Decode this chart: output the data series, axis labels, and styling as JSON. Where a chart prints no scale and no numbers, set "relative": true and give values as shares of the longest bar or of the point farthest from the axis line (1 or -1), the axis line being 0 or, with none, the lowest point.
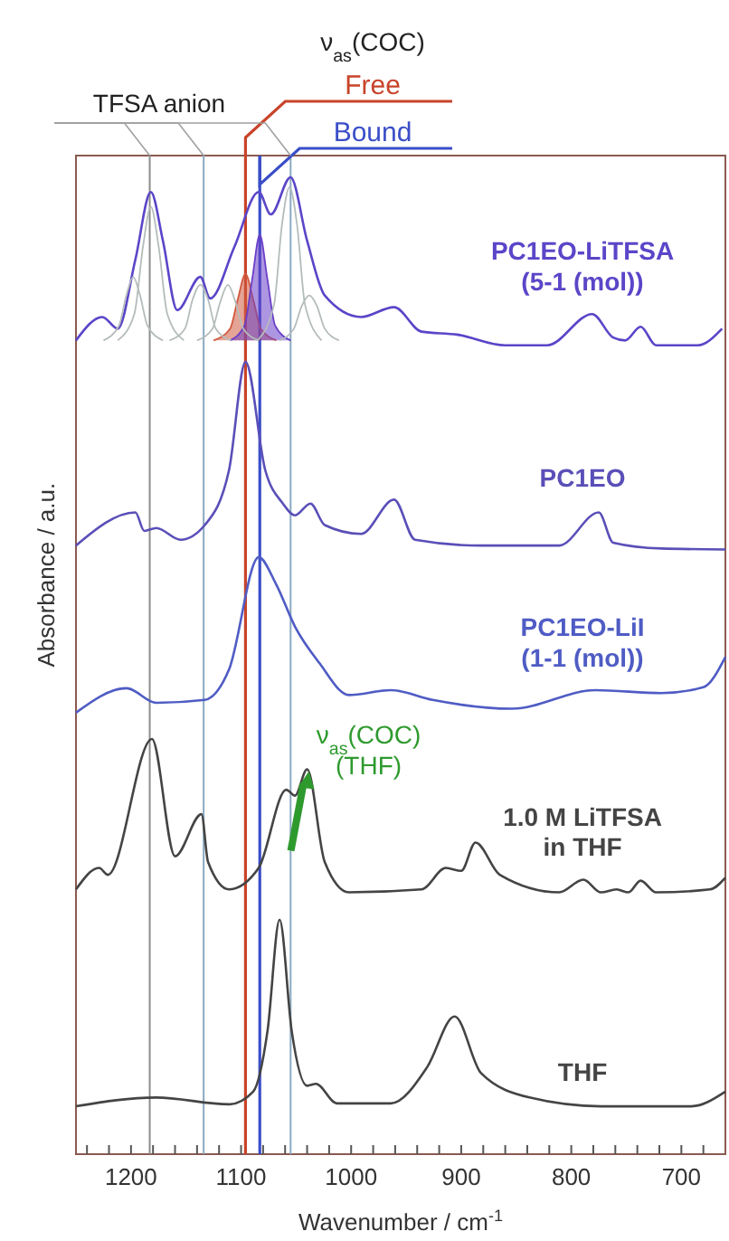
{
  "chart_data": {
    "type": "line",
    "relative": true,
    "xlabel": "Wavenumber / cm$^{-1}$",
    "ylabel": "Absorbance / a.u.",
    "xlim": [
      1250,
      660
    ],
    "xticks": [
      {
        "value": 1240,
        "label": null
      },
      {
        "value": 1220,
        "label": null
      },
      1200,
      {
        "value": 1180,
        "label": null
      },
      {
        "value": 1160,
        "label": null
      },
      {
        "value": 1140,
        "label": null
      },
      {
        "value": 1120,
        "label": null
      },
      1100,
      {
        "value": 1080,
        "label": null
      },
      {
        "value": 1060,
        "label": null
      },
      {
        "value": 1040,
        "label": null
      },
      {
        "value": 1020,
        "label": null
      },
      1000,
      {
        "value": 980,
        "label": null
      },
      {
        "value": 960,
        "label": null
      },
      {
        "value": 940,
        "label": null
      },
      {
        "value": 920,
        "label": null
      },
      900,
      {
        "value": 880,
        "label": null
      },
      {
        "value": 860,
        "label": null
      },
      {
        "value": 840,
        "label": null
      },
      {
        "value": 820,
        "label": null
      },
      800,
      {
        "value": 780,
        "label": null
      },
      {
        "value": 760,
        "label": null
      },
      {
        "value": 740,
        "label": null
      },
      {
        "value": 720,
        "label": null
      },
      700,
      {
        "value": 680,
        "label": null
      }
    ],
    "marker": "none",
    "series": [
      {
        "name": "PC1EO-LiTFSA\n(5-1 (mol))",
        "color": "#5b45c8",
        "x": [
          1250,
          1226,
          1212,
          1196,
          1182,
          1171,
          1158,
          1137,
          1128,
          1106,
          1084,
          1073,
          1055,
          1040,
          1024,
          991,
          961,
          936,
          904,
          860,
          822,
          781,
          762,
          751,
          737,
          723,
          685,
          663
        ],
        "values": [
          0.833,
          0.857,
          0.845,
          0.916,
          0.985,
          0.935,
          0.864,
          0.898,
          0.876,
          0.929,
          0.985,
          0.962,
          1,
          0.935,
          0.879,
          0.857,
          0.867,
          0.842,
          0.839,
          0.828,
          0.828,
          0.86,
          0.836,
          0.833,
          0.847,
          0.828,
          0.828,
          0.845
        ]
      },
      {
        "color": "#d0593e",
        "x": [
          1125,
          1110,
          1103,
          1096,
          1089,
          1082,
          1068
        ],
        "values": [
          0.833,
          0.845,
          0.875,
          0.901,
          0.875,
          0.845,
          0.833
        ],
        "lower": [
          0.833,
          0.833,
          0.833,
          0.833,
          0.833,
          0.833,
          0.833
        ],
        "upper": [
          0.833,
          0.845,
          0.875,
          0.901,
          0.875,
          0.845,
          0.833
        ]
      },
      {
        "color": "#6a3fc8",
        "x": [
          1110,
          1097,
          1090,
          1083,
          1076,
          1069,
          1055
        ],
        "values": [
          0.833,
          0.848,
          0.895,
          0.941,
          0.895,
          0.848,
          0.833
        ],
        "lower": [
          0.833,
          0.833,
          0.833,
          0.833,
          0.833,
          0.833,
          0.833
        ],
        "upper": [
          0.833,
          0.848,
          0.895,
          0.941,
          0.895,
          0.848,
          0.833
        ]
      },
      {
        "color": "#b5bcbc",
        "x": [
          1212,
          1197,
          1189,
          1182,
          1175,
          1167,
          1152
        ],
        "values": [
          0.833,
          0.86,
          0.93,
          0.97,
          0.93,
          0.86,
          0.833
        ]
      },
      {
        "color": "#b5bcbc",
        "x": [
          1225,
          1211,
          1204,
          1198,
          1192,
          1185,
          1171
        ],
        "values": [
          0.833,
          0.848,
          0.88,
          0.898,
          0.88,
          0.848,
          0.833
        ]
      },
      {
        "color": "#b5bcbc",
        "x": [
          1165,
          1151,
          1144,
          1137,
          1130,
          1123,
          1109
        ],
        "values": [
          0.833,
          0.845,
          0.875,
          0.89,
          0.875,
          0.845,
          0.833
        ]
      },
      {
        "color": "#b5bcbc",
        "x": [
          1140,
          1126,
          1119,
          1112,
          1105,
          1098,
          1084
        ],
        "values": [
          0.833,
          0.845,
          0.872,
          0.89,
          0.872,
          0.845,
          0.833
        ]
      },
      {
        "color": "#b5bcbc",
        "x": [
          1085,
          1070,
          1063,
          1056,
          1049,
          1042,
          1027
        ],
        "values": [
          0.833,
          0.87,
          0.95,
          0.99,
          0.95,
          0.87,
          0.833
        ]
      },
      {
        "color": "#b5bcbc",
        "x": [
          1065,
          1052,
          1045,
          1038,
          1031,
          1024,
          1011
        ],
        "values": [
          0.833,
          0.845,
          0.868,
          0.879,
          0.868,
          0.845,
          0.833
        ]
      },
      {
        "name": "PC1EO",
        "color": "#5a4fb8",
        "x": [
          1250,
          1196,
          1188,
          1177,
          1155,
          1133,
          1111,
          1096,
          1078,
          1062,
          1051,
          1037,
          1024,
          991,
          961,
          942,
          882,
          811,
          775,
          762,
          718,
          660
        ],
        "values": [
          0.623,
          0.657,
          0.638,
          0.641,
          0.629,
          0.644,
          0.7,
          0.811,
          0.7,
          0.666,
          0.654,
          0.666,
          0.644,
          0.635,
          0.67,
          0.629,
          0.623,
          0.623,
          0.657,
          0.626,
          0.62,
          0.619
        ]
      },
      {
        "name": "PC1EO-LiI\n(1-1 (mol))",
        "color": "#4f5cc4",
        "x": [
          1250,
          1204,
          1177,
          1133,
          1111,
          1084,
          1068,
          1051,
          1029,
          1002,
          964,
          926,
          854,
          778,
          718,
          680,
          660
        ],
        "values": [
          0.452,
          0.477,
          0.462,
          0.465,
          0.496,
          0.611,
          0.583,
          0.54,
          0.503,
          0.47,
          0.475,
          0.465,
          0.456,
          0.475,
          0.472,
          0.478,
          0.509
        ]
      },
      {
        "name": "1.0 M LiTFSA\nin THF",
        "color": "#444444",
        "x": [
          1250,
          1229,
          1221,
          1181,
          1160,
          1136,
          1130,
          1111,
          1084,
          1059,
          1051,
          1040,
          1024,
          1002,
          936,
          914,
          900,
          887,
          865,
          811,
          789,
          773,
          759,
          748,
          737,
          723,
          674,
          660
        ],
        "values": [
          0.271,
          0.293,
          0.286,
          0.425,
          0.305,
          0.348,
          0.299,
          0.271,
          0.293,
          0.373,
          0.367,
          0.394,
          0.299,
          0.268,
          0.271,
          0.293,
          0.29,
          0.319,
          0.286,
          0.268,
          0.281,
          0.268,
          0.271,
          0.268,
          0.28,
          0.268,
          0.271,
          0.283
        ]
      },
      {
        "name": "THF",
        "color": "#444444",
        "x": [
          1250,
          1177,
          1111,
          1089,
          1076,
          1065,
          1054,
          1040,
          1032,
          1013,
          964,
          931,
          906,
          882,
          838,
          773,
          691,
          660
        ],
        "values": [
          0.049,
          0.058,
          0.051,
          0.064,
          0.126,
          0.24,
          0.126,
          0.07,
          0.072,
          0.052,
          0.052,
          0.089,
          0.141,
          0.083,
          0.058,
          0.049,
          0.049,
          0.064
        ]
      }
    ],
    "ref_lines": [
      {
        "axis": "x",
        "value": 1183,
        "label": null,
        "color": "#8c8c8c"
      },
      {
        "axis": "x",
        "value": 1134,
        "label": null,
        "color": "#8aa9c0"
      },
      {
        "axis": "x",
        "value": 1055,
        "label": null,
        "color": "#8aa9c0"
      },
      {
        "axis": "x",
        "value": 1096,
        "label": "Free",
        "color": "#c8442a"
      },
      {
        "axis": "x",
        "value": 1083,
        "label": "Bound",
        "color": "#3a4ec8"
      }
    ],
    "annotations": [
      "TFSA anion",
      "ν$_{as}$(COC)",
      {
        "text": "ν$_{as}$(COC)\n(THF)",
        "x": 1040,
        "y": 0.394
      }
    ]
  }
}
